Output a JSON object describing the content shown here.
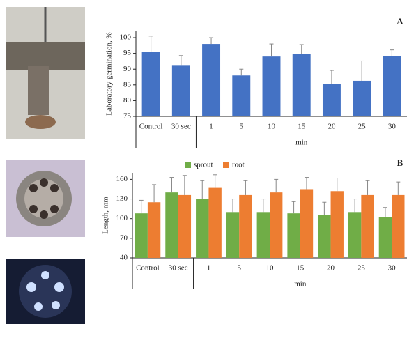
{
  "chart_data": [
    {
      "type": "bar",
      "panel": "A",
      "ylabel": "Laboratory germination, %",
      "group_label": "min",
      "categories": [
        "Control",
        "30 sec",
        "1",
        "5",
        "10",
        "15",
        "20",
        "25",
        "30"
      ],
      "values": [
        95.5,
        91.3,
        98,
        88,
        94,
        94.8,
        85.3,
        86.3,
        94.1
      ],
      "errors": [
        5,
        3,
        2,
        2,
        4,
        3,
        4.3,
        6.3,
        2
      ],
      "color": "#4472c4",
      "ylim": [
        75,
        102
      ],
      "yticks": [
        75,
        80,
        85,
        90,
        95,
        100
      ]
    },
    {
      "type": "bar",
      "panel": "B",
      "ylabel": "Length, mm",
      "group_label": "min",
      "categories": [
        "Control",
        "30 sec",
        "1",
        "5",
        "10",
        "15",
        "20",
        "25",
        "30"
      ],
      "series": [
        {
          "name": "sprout",
          "color": "#70ad47",
          "values": [
            108,
            140,
            130,
            110,
            110,
            108,
            105,
            110,
            102
          ],
          "errors": [
            20,
            23,
            28,
            20,
            20,
            18,
            20,
            20,
            15
          ]
        },
        {
          "name": "root",
          "color": "#ed7d31",
          "values": [
            125,
            136,
            147,
            136,
            140,
            145,
            142,
            136,
            136
          ],
          "errors": [
            27,
            30,
            20,
            22,
            20,
            18,
            20,
            22,
            20
          ]
        }
      ],
      "ylim": [
        40,
        170
      ],
      "yticks": [
        40,
        70,
        100,
        130,
        160
      ]
    }
  ]
}
